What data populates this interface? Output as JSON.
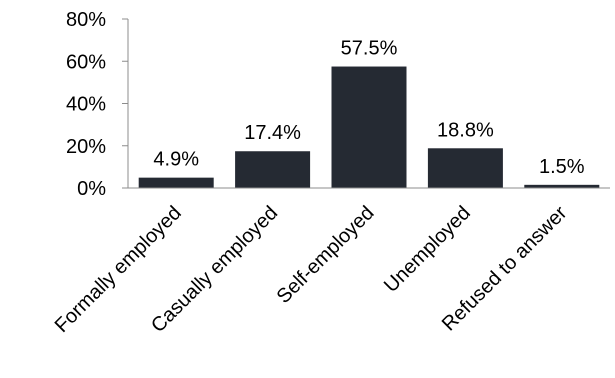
{
  "chart_data": {
    "type": "bar",
    "categories": [
      "Formally employed",
      "Casually employed",
      "Self-employed",
      "Unemployed",
      "Refused to answer"
    ],
    "values": [
      4.9,
      17.4,
      57.5,
      18.8,
      1.5
    ],
    "data_labels": [
      "4.9%",
      "17.4%",
      "57.5%",
      "18.8%",
      "1.5%"
    ],
    "y_ticks": [
      0,
      20,
      40,
      60,
      80
    ],
    "y_tick_labels": [
      "0%",
      "20%",
      "40%",
      "60%",
      "80%"
    ],
    "ylim": [
      0,
      80
    ],
    "grid": false,
    "legend": "none",
    "bar_color": "#252a33"
  }
}
